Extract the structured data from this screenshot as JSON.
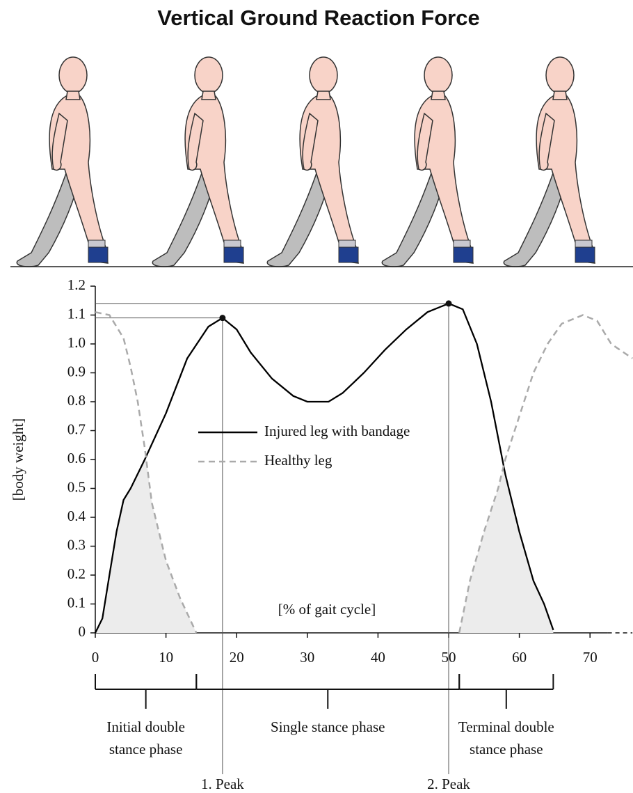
{
  "chart_data": {
    "type": "line",
    "title": "Vertical Ground Reaction Force",
    "x_label": "[% of gait cycle]",
    "y_label": "[body weight]",
    "xlim": [
      0,
      76
    ],
    "xticks": [
      0,
      10,
      20,
      30,
      40,
      50,
      60,
      70
    ],
    "ylim": [
      0,
      1.2
    ],
    "yticks": [
      0,
      0.1,
      0.2,
      0.3,
      0.4,
      0.5,
      0.6,
      0.7,
      0.8,
      0.9,
      {
        "value": 1,
        "label": "1.0"
      },
      1.1,
      1.2
    ],
    "series": [
      {
        "name": "Injured leg with bandage",
        "color": "#000000",
        "dash": false,
        "x": [
          0,
          1,
          2,
          3,
          4,
          5,
          7,
          10,
          13,
          16,
          18,
          20,
          22,
          25,
          28,
          30,
          33,
          35,
          38,
          41,
          44,
          47,
          50,
          52,
          54,
          56,
          58,
          60,
          62,
          63.5,
          64.8
        ],
        "values": [
          0,
          0.05,
          0.2,
          0.35,
          0.46,
          0.5,
          0.6,
          0.76,
          0.95,
          1.06,
          1.09,
          1.05,
          0.97,
          0.88,
          0.82,
          0.8,
          0.8,
          0.83,
          0.9,
          0.98,
          1.05,
          1.11,
          1.14,
          1.12,
          1,
          0.8,
          0.55,
          0.35,
          0.18,
          0.1,
          0.01
        ]
      },
      {
        "name": "Healthy leg",
        "color": "#aaaaaa",
        "dash": true,
        "x": [
          0,
          2,
          4,
          5,
          6,
          7,
          8,
          9,
          10,
          12,
          14.3,
          30,
          51.5,
          53,
          55,
          57,
          58,
          60,
          62,
          64,
          66,
          69,
          71,
          73,
          76
        ],
        "values": [
          1.11,
          1.1,
          1.02,
          0.92,
          0.8,
          0.64,
          0.45,
          0.35,
          0.25,
          0.12,
          0,
          null,
          0,
          0.18,
          0.35,
          0.5,
          0.6,
          0.75,
          0.9,
          1,
          1.07,
          1.1,
          1.08,
          1,
          0.95
        ]
      }
    ],
    "peaks": [
      {
        "label": "1. Peak",
        "x": 18,
        "y": 1.09
      },
      {
        "label": "2. Peak",
        "x": 50,
        "y": 1.14
      }
    ],
    "phases": [
      {
        "label": [
          "Initial double",
          "stance phase"
        ],
        "start": 0,
        "end": 14.3
      },
      {
        "label": [
          "Single stance phase"
        ],
        "start": 14.3,
        "end": 51.5
      },
      {
        "label": [
          "Terminal double",
          "stance phase"
        ],
        "start": 51.5,
        "end": 64.8
      }
    ]
  }
}
